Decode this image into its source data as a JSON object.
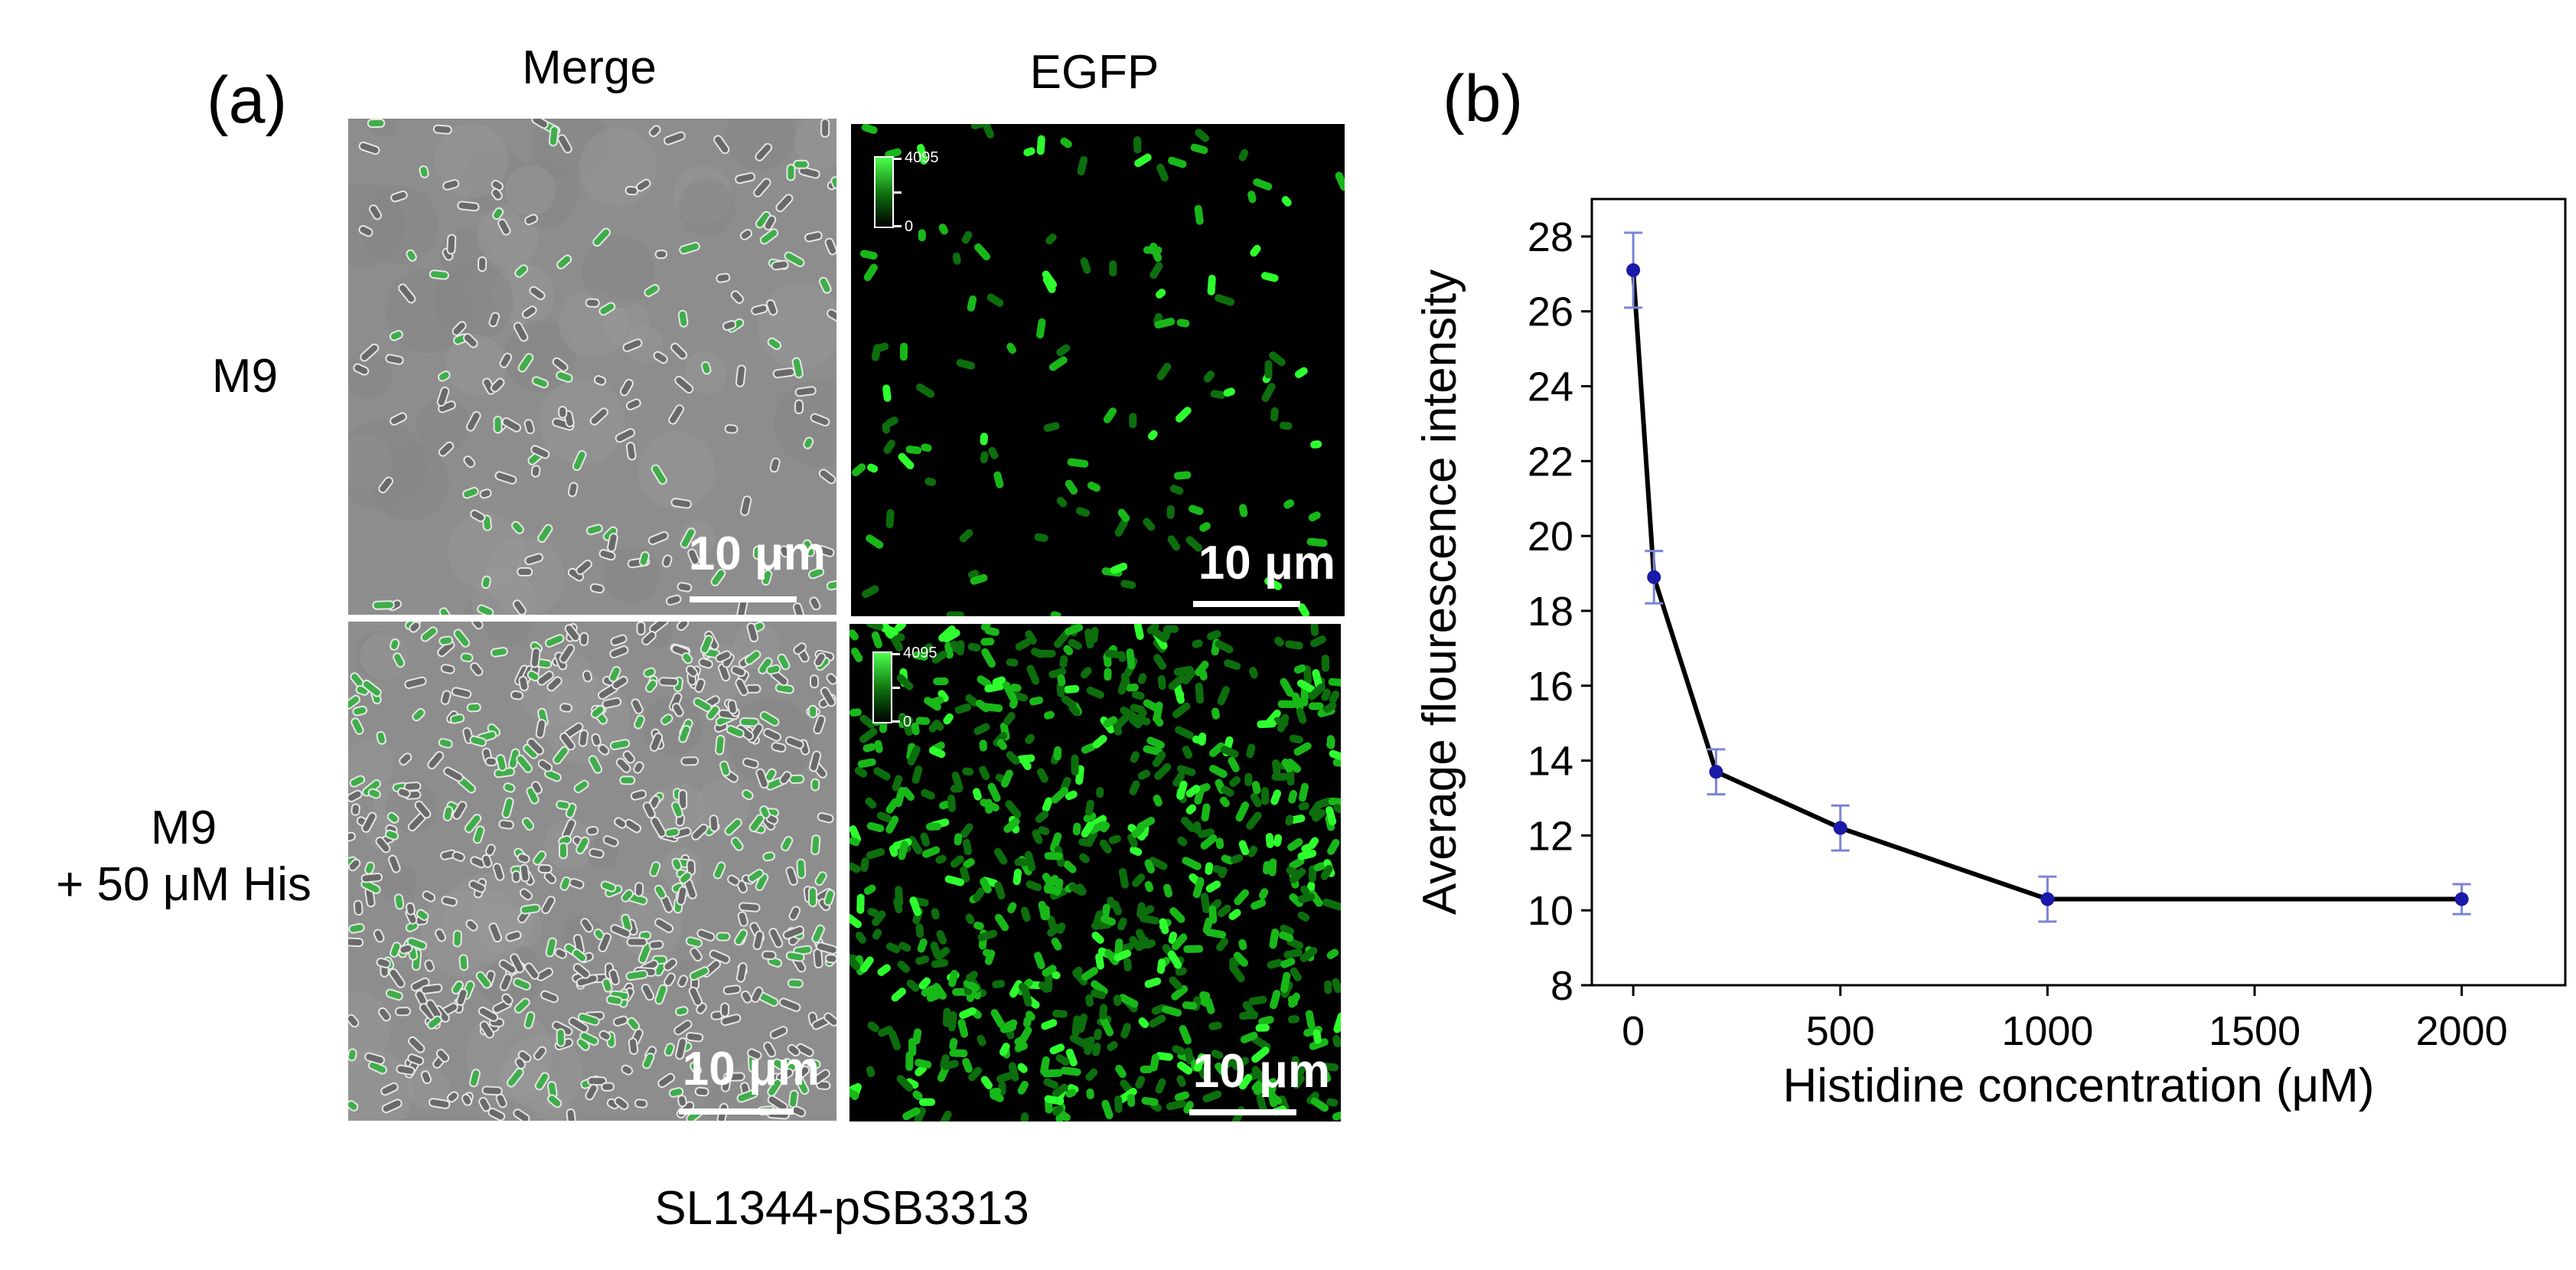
{
  "figure": {
    "panel_a_label": "(a)",
    "panel_b_label": "(b)",
    "column_headers": [
      "Merge",
      "EGFP"
    ],
    "row_headers": [
      [
        "M9"
      ],
      [
        "M9",
        "+ 50 μM His"
      ]
    ],
    "scale_bar_label": "10 μm",
    "colorbar": {
      "max_label": "4095",
      "min_label": "0",
      "color": "#22cc22"
    },
    "caption": "SL1344-pSB3313"
  },
  "chart_data": {
    "type": "line",
    "xlabel": "Histidine concentration (μM)",
    "ylabel": "Average flourescence intensity",
    "x": [
      0,
      50,
      200,
      500,
      1000,
      2000
    ],
    "series": [
      {
        "values": [
          27.1,
          18.9,
          13.7,
          12.2,
          10.3,
          10.3
        ],
        "errors": [
          1.0,
          0.7,
          0.6,
          0.6,
          0.6,
          0.4
        ]
      }
    ],
    "xlim": [
      -100,
      2250
    ],
    "ylim": [
      8,
      29
    ],
    "xticks": [
      0,
      500,
      1000,
      1500,
      2000
    ],
    "yticks": [
      8,
      10,
      12,
      14,
      16,
      18,
      20,
      22,
      24,
      26,
      28
    ],
    "grid": false,
    "legend": "none",
    "line_color": "#000000",
    "marker_color": "#1a1aa8",
    "errorbar_color": "#7a84d6"
  }
}
